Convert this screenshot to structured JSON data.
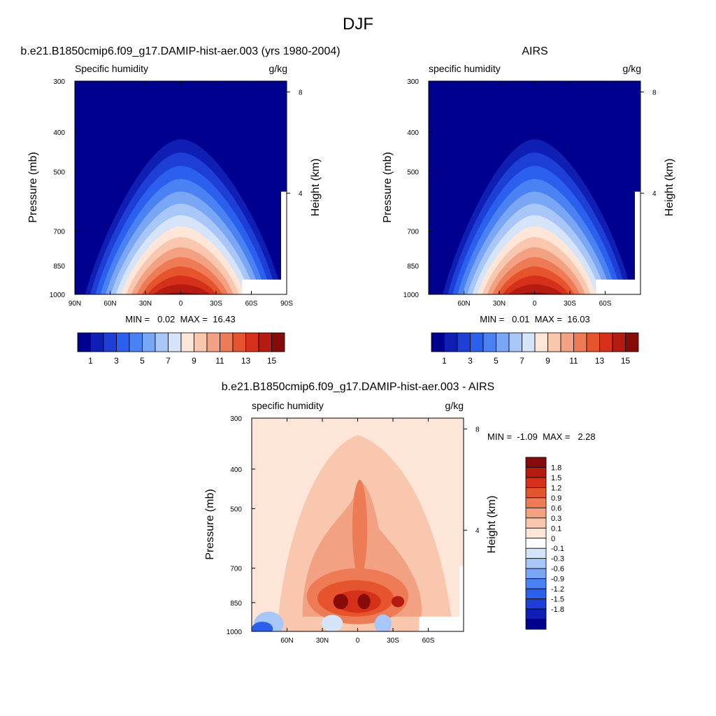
{
  "figure": {
    "title": "DJF"
  },
  "colors": {
    "abs_scale": [
      "#00008f",
      "#0f1fb4",
      "#1d3fd6",
      "#2b5fee",
      "#4a82f4",
      "#7aa6f6",
      "#a9c6f8",
      "#d6e4fa",
      "#fde6d8",
      "#f8c7ad",
      "#f2a282",
      "#ed7b55",
      "#e6542d",
      "#d5311a",
      "#b51b10",
      "#870b08"
    ],
    "diff_scale": [
      "#00008f",
      "#0f1fb4",
      "#1d3fd6",
      "#2b5fee",
      "#4a82f4",
      "#7aa6f6",
      "#a9c6f8",
      "#d6e4fa",
      "#fefefe",
      "#fde6d8",
      "#f8c7ad",
      "#f2a282",
      "#ed7b55",
      "#e6542d",
      "#d5311a",
      "#b51b10",
      "#870b08"
    ]
  },
  "panels": [
    {
      "id": "model",
      "title": "b.e21.B1850cmip6.f09_g17.DAMIP-hist-aer.003 (yrs 1980-2004)",
      "left_label": "Specific humidity",
      "right_label": "g/kg",
      "ylabel": "Pressure (mb)",
      "y2label": "Height (km)",
      "stats": "MIN =   0.02  MAX =  16.43"
    },
    {
      "id": "obs",
      "title": "AIRS",
      "left_label": "specific humidity",
      "right_label": "g/kg",
      "ylabel": "Pressure (mb)",
      "y2label": "Height (km)",
      "stats": "MIN =   0.01  MAX =  16.03"
    },
    {
      "id": "diff",
      "title": "b.e21.B1850cmip6.f09_g17.DAMIP-hist-aer.003 - AIRS",
      "left_label": "specific humidity",
      "right_label": "g/kg",
      "ylabel": "Pressure (mb)",
      "y2label": "Height (km)",
      "stats": "MIN =  -1.09  MAX =   2.28"
    }
  ],
  "chart_data": [
    {
      "type": "heatmap",
      "panel": "model",
      "title": "b.e21.B1850cmip6.f09_g17.DAMIP-hist-aer.003 (yrs 1980-2004)",
      "variable": "Specific humidity",
      "units": "g/kg",
      "x_ticks": [
        "90N",
        "60N",
        "30N",
        "0",
        "30S",
        "60S",
        "90S"
      ],
      "x_values": [
        90,
        60,
        30,
        0,
        -30,
        -60,
        -90
      ],
      "xlim": [
        90,
        -90
      ],
      "y_ticks": [
        "300",
        "400",
        "500",
        "700",
        "850",
        "1000"
      ],
      "y_values": [
        300,
        400,
        500,
        700,
        850,
        1000
      ],
      "ylim": [
        1000,
        300
      ],
      "y2_ticks": [
        "8",
        "4"
      ],
      "y2_values": [
        8,
        4
      ],
      "colorbar_labels": [
        "1",
        "3",
        "5",
        "7",
        "9",
        "11",
        "13",
        "15"
      ],
      "min": 0.02,
      "max": 16.43
    },
    {
      "type": "heatmap",
      "panel": "obs",
      "title": "AIRS",
      "variable": "specific humidity",
      "units": "g/kg",
      "x_ticks": [
        "60N",
        "30N",
        "0",
        "30S",
        "60S"
      ],
      "x_values": [
        60,
        30,
        0,
        -30,
        -60
      ],
      "xlim": [
        90,
        -90
      ],
      "y_ticks": [
        "300",
        "400",
        "500",
        "700",
        "850",
        "1000"
      ],
      "y_values": [
        300,
        400,
        500,
        700,
        850,
        1000
      ],
      "ylim": [
        1000,
        300
      ],
      "y2_ticks": [
        "8",
        "4"
      ],
      "y2_values": [
        8,
        4
      ],
      "colorbar_labels": [
        "1",
        "3",
        "5",
        "7",
        "9",
        "11",
        "13",
        "15"
      ],
      "min": 0.01,
      "max": 16.03
    },
    {
      "type": "heatmap",
      "panel": "diff",
      "title": "b.e21.B1850cmip6.f09_g17.DAMIP-hist-aer.003 - AIRS",
      "variable": "specific humidity",
      "units": "g/kg",
      "x_ticks": [
        "60N",
        "30N",
        "0",
        "30S",
        "60S"
      ],
      "x_values": [
        60,
        30,
        0,
        -30,
        -60
      ],
      "xlim": [
        90,
        -90
      ],
      "y_ticks": [
        "300",
        "400",
        "500",
        "700",
        "850",
        "1000"
      ],
      "y_values": [
        300,
        400,
        500,
        700,
        850,
        1000
      ],
      "ylim": [
        1000,
        300
      ],
      "y2_ticks": [
        "8",
        "4"
      ],
      "y2_values": [
        8,
        4
      ],
      "colorbar_labels": [
        "1.8",
        "1.5",
        "1.2",
        "0.9",
        "0.6",
        "0.3",
        "0.1",
        "0",
        "-0.1",
        "-0.3",
        "-0.6",
        "-0.9",
        "-1.2",
        "-1.5",
        "-1.8"
      ],
      "min": -1.09,
      "max": 2.28
    }
  ]
}
